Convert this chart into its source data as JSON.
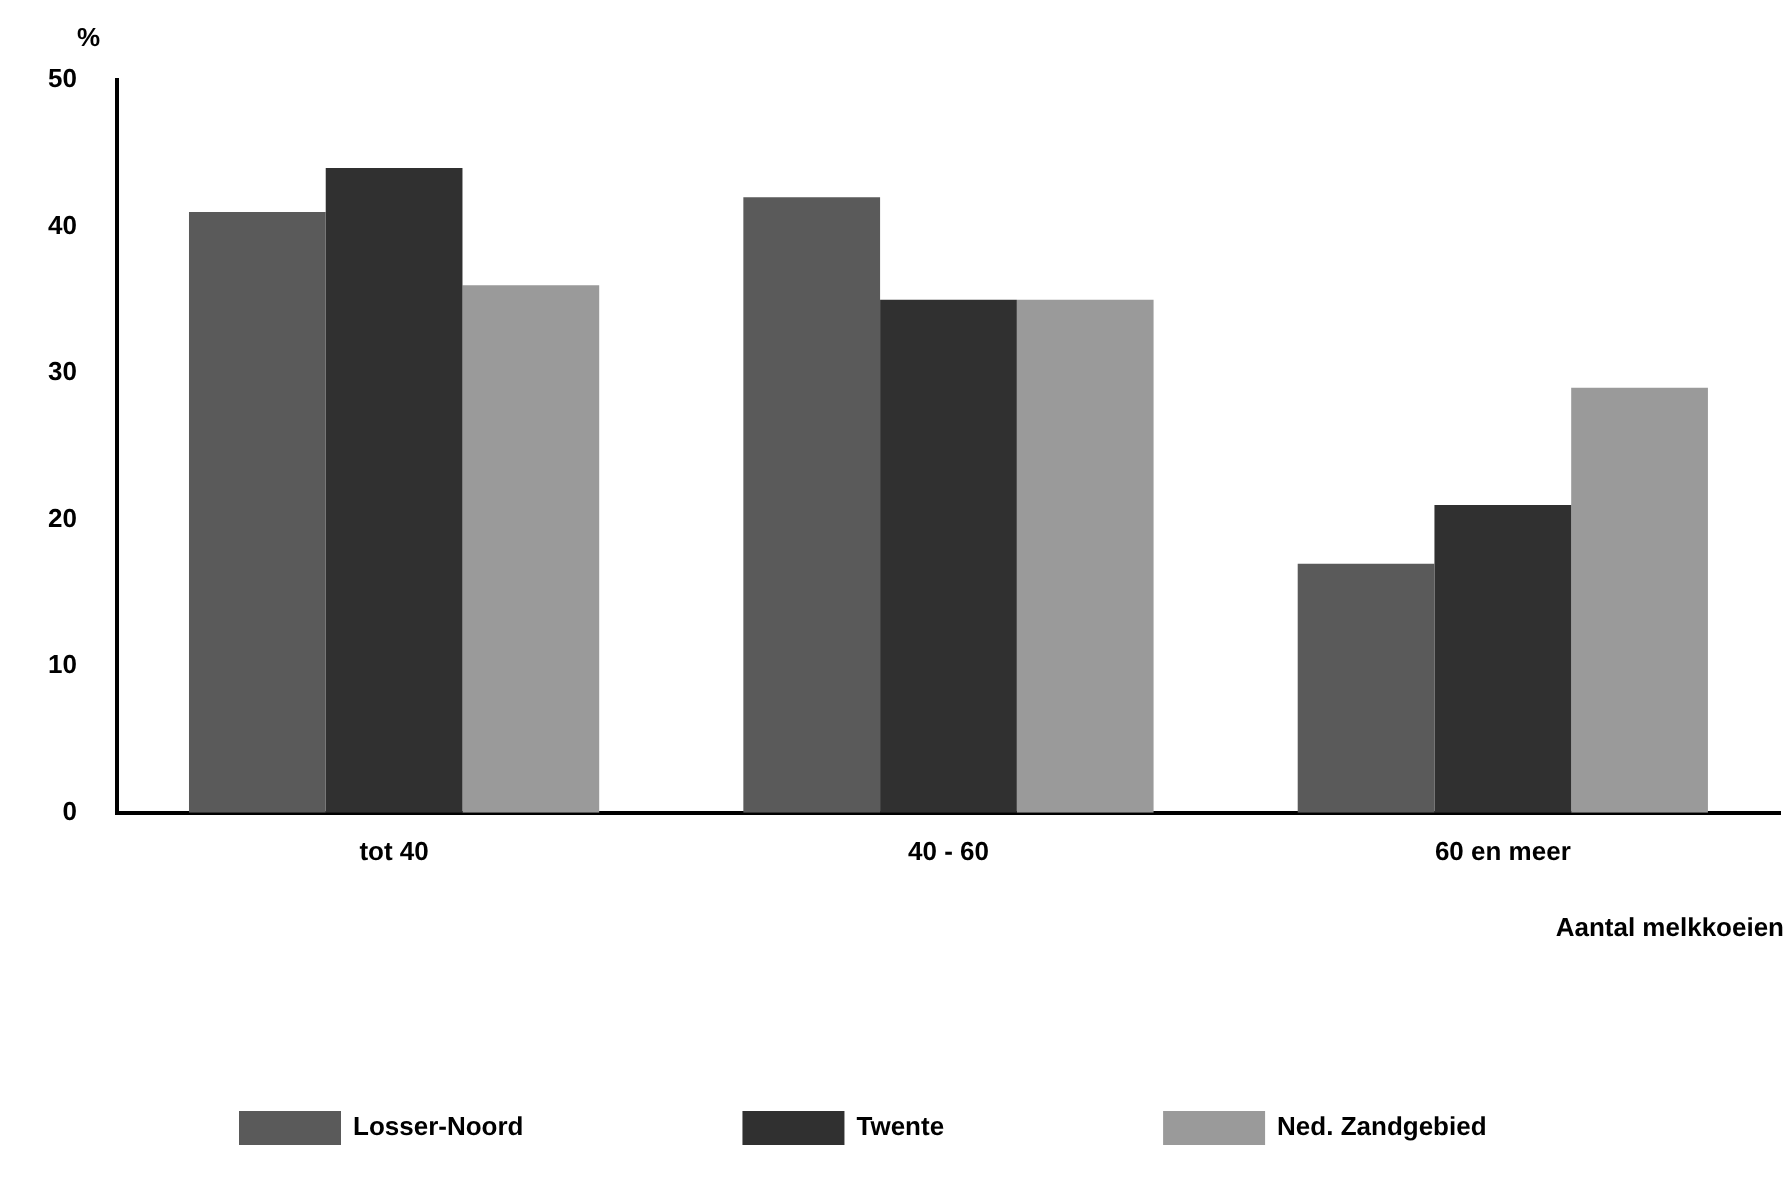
{
  "chart_data": {
    "type": "bar",
    "ylabel": "%",
    "xlabel": "Aantal melkkoeien",
    "categories": [
      "tot 40",
      "40 - 60",
      "60 en meer"
    ],
    "series": [
      {
        "name": "Losser-Noord",
        "color": "#5a5a5a",
        "values": [
          41,
          42,
          17
        ]
      },
      {
        "name": "Twente",
        "color": "#303030",
        "values": [
          44,
          35,
          21
        ]
      },
      {
        "name": "Ned. Zandgebied",
        "color": "#9a9a9a",
        "values": [
          36,
          35,
          29
        ]
      }
    ],
    "ylim": [
      0,
      50
    ],
    "yticks": [
      0,
      10,
      20,
      30,
      40,
      50
    ],
    "grid": false,
    "legend": "bottom"
  }
}
